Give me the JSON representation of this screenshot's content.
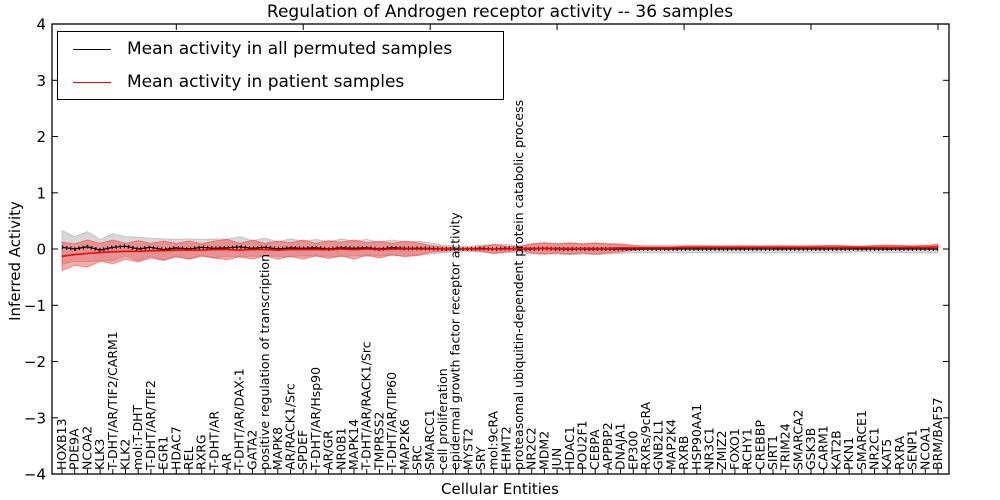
{
  "figure": {
    "title": "Regulation of Androgen receptor activity -- 36 samples",
    "xlabel": "Cellular Entities",
    "ylabel": "Inferred Activity"
  },
  "legend": {
    "position": "upper left",
    "entries": [
      {
        "label": "Mean activity in all permuted samples",
        "color": "#000000"
      },
      {
        "label": "Mean activity in patient samples",
        "color": "#ff0000"
      }
    ]
  },
  "chart_data": {
    "type": "line",
    "title": "Regulation of Androgen receptor activity -- 36 samples",
    "xlabel": "Cellular Entities",
    "ylabel": "Inferred Activity",
    "ylim": [
      -4,
      4
    ],
    "yticks": [
      4,
      3,
      2,
      1,
      0,
      -1,
      -2,
      -3,
      -4
    ],
    "ytick_labels": [
      "4",
      "3",
      "2",
      "1",
      "0",
      "−1",
      "−2",
      "−3",
      "−4"
    ],
    "grid": false,
    "legend_position": "upper left",
    "categories": [
      "HOXB13",
      "PDE9A",
      "NCOA2",
      "KLK3",
      "T-DHT/AR/TIF2/CARM1",
      "KLK2",
      "mol:T-DHT",
      "T-DHT/AR/TIF2",
      "EGR1",
      "HDAC7",
      "REL",
      "RXRG",
      "T-DHT/AR",
      "AR",
      "T-DHT/AR/DAX-1",
      "GATA2",
      "positive regulation of transcription",
      "MAPK8",
      "AR/RACK1/Src",
      "SPDEF",
      "T-DHT/AR/Hsp90",
      "AR/GR",
      "NR0B1",
      "MAPK14",
      "T-DHT/AR/RACK1/Src",
      "TMPRSS2",
      "T-DHT/AR/TIP60",
      "MAP2K6",
      "SRC",
      "SMARCC1",
      "cell proliferation",
      "epidermal growth factor receptor activity",
      "MYST2",
      "SRY",
      "mol:9cRA",
      "EHMT2",
      "proteasomal ubiquitin-dependent protein catabolic process",
      "NR2C2",
      "MDM2",
      "JUN",
      "HDAC1",
      "POU2F1",
      "CEBPA",
      "APPBP2",
      "DNAJA1",
      "EP300",
      "RXRs/9cRA",
      "GNB2L1",
      "MAP2K4",
      "RXRB",
      "HSP90AA1",
      "NR3C1",
      "ZMIZ2",
      "FOXO1",
      "RCHY1",
      "CREBBP",
      "SIRT1",
      "TRIM24",
      "SMARCA2",
      "GSK3B",
      "CARM1",
      "KAT2B",
      "PKN1",
      "SMARCE1",
      "NR2C1",
      "KAT5",
      "RXRA",
      "SENP1",
      "NCOA1",
      "BRM/BAF57"
    ],
    "series": [
      {
        "name": "Mean activity in all permuted samples",
        "color": "#000000",
        "band_color": "#999999",
        "band_opacity": 0.38,
        "values": [
          0.03,
          0.0,
          0.04,
          -0.02,
          0.03,
          0.05,
          0.0,
          0.03,
          -0.01,
          0.02,
          0.0,
          0.03,
          0.01,
          0.02,
          0.04,
          0.01,
          0.03,
          0.0,
          0.02,
          0.01,
          0.02,
          0.0,
          0.02,
          0.01,
          0.02,
          0.0,
          0.02,
          0.01,
          0.01,
          0.01,
          0.0,
          0.0,
          0.0,
          0.01,
          0.0,
          0.01,
          0.0,
          0.0,
          0.01,
          0.0,
          0.0,
          0.0,
          0.0,
          0.0,
          0.0,
          0.0,
          0.0,
          0.0,
          0.0,
          0.0,
          0.0,
          0.0,
          0.0,
          0.0,
          0.0,
          0.0,
          0.0,
          0.0,
          0.0,
          0.0,
          0.0,
          0.0,
          0.0,
          0.0,
          0.0,
          0.0,
          0.0,
          0.0,
          0.0,
          0.0
        ],
        "band_halfwidth": [
          0.3,
          0.22,
          0.27,
          0.19,
          0.24,
          0.17,
          0.21,
          0.16,
          0.19,
          0.15,
          0.18,
          0.14,
          0.17,
          0.15,
          0.18,
          0.14,
          0.16,
          0.13,
          0.16,
          0.13,
          0.15,
          0.13,
          0.16,
          0.13,
          0.15,
          0.12,
          0.14,
          0.12,
          0.13,
          0.1,
          0.07,
          0.05,
          0.05,
          0.06,
          0.08,
          0.07,
          0.06,
          0.09,
          0.1,
          0.09,
          0.1,
          0.09,
          0.1,
          0.09,
          0.08,
          0.07,
          0.07,
          0.07,
          0.07,
          0.07,
          0.07,
          0.07,
          0.06,
          0.07,
          0.07,
          0.06,
          0.07,
          0.07,
          0.06,
          0.07,
          0.06,
          0.07,
          0.06,
          0.05,
          0.06,
          0.07,
          0.06,
          0.07,
          0.07,
          0.07
        ]
      },
      {
        "name": "Mean activity in patient samples",
        "color": "#ff0000",
        "band_color": "#ff2222",
        "band_opacity": 0.38,
        "values": [
          -0.13,
          -0.1,
          -0.08,
          -0.06,
          -0.05,
          -0.04,
          -0.04,
          -0.03,
          -0.03,
          -0.02,
          -0.02,
          -0.02,
          -0.01,
          -0.01,
          -0.02,
          -0.01,
          -0.01,
          -0.02,
          -0.01,
          -0.01,
          -0.01,
          -0.01,
          0.0,
          -0.01,
          0.0,
          -0.01,
          0.0,
          0.0,
          0.0,
          0.0,
          0.0,
          0.0,
          0.0,
          0.0,
          0.0,
          0.0,
          0.01,
          0.01,
          0.01,
          0.01,
          0.01,
          0.01,
          0.01,
          0.01,
          0.02,
          0.02,
          0.02,
          0.02,
          0.02,
          0.03,
          0.03,
          0.03,
          0.03,
          0.03,
          0.03,
          0.03,
          0.03,
          0.03,
          0.03,
          0.03,
          0.03,
          0.03,
          0.03,
          0.03,
          0.03,
          0.03,
          0.03,
          0.03,
          0.03,
          0.04
        ],
        "band_halfwidth": [
          0.25,
          0.19,
          0.24,
          0.16,
          0.21,
          0.14,
          0.19,
          0.13,
          0.17,
          0.12,
          0.16,
          0.11,
          0.15,
          0.18,
          0.12,
          0.17,
          0.11,
          0.16,
          0.12,
          0.17,
          0.11,
          0.16,
          0.12,
          0.17,
          0.11,
          0.15,
          0.1,
          0.14,
          0.11,
          0.06,
          0.04,
          0.02,
          0.02,
          0.04,
          0.08,
          0.05,
          0.03,
          0.08,
          0.1,
          0.08,
          0.1,
          0.08,
          0.1,
          0.08,
          0.07,
          0.04,
          0.02,
          0.02,
          0.02,
          0.02,
          0.02,
          0.02,
          0.02,
          0.02,
          0.02,
          0.02,
          0.02,
          0.02,
          0.02,
          0.02,
          0.03,
          0.03,
          0.02,
          0.02,
          0.03,
          0.04,
          0.03,
          0.02,
          0.03,
          0.05
        ]
      }
    ]
  }
}
